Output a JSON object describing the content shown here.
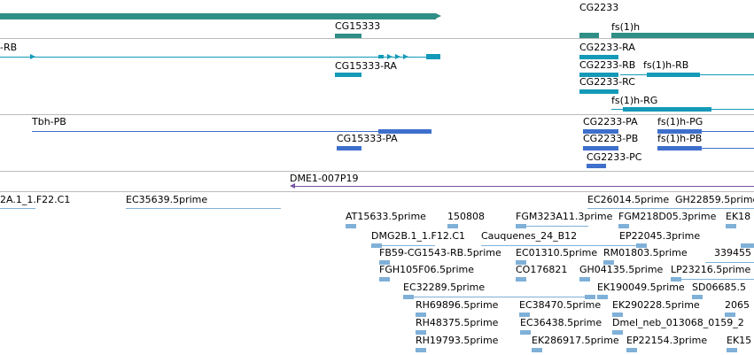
{
  "colors": {
    "gene": "#2f8f87",
    "mrna": "#149ab8",
    "cds": "#3f6fcc",
    "clone": "#7a56a6",
    "est": "#7fb0d8",
    "separator": "#bcbcbc"
  },
  "gene_track": {
    "labels": [
      "CG2233",
      "CG15333",
      "fs(1)h"
    ]
  },
  "mrna_track": {
    "labels": [
      "-RB",
      "CG2233-RA",
      "CG15333-RA",
      "CG2233-RB",
      "fs(1)h-RB",
      "CG2233-RC",
      "fs(1)h-RG"
    ]
  },
  "cds_track": {
    "labels": [
      "Tbh-PB",
      "CG2233-PA",
      "fs(1)h-PG",
      "CG15333-PA",
      "CG2233-PB",
      "fs(1)h-PB",
      "CG2233-PC"
    ]
  },
  "clone_track": {
    "labels": [
      "DME1-007P19"
    ]
  },
  "est_track": {
    "labels": [
      "2A.1_1.F22.C1",
      "EC35639.5prime",
      "EC26014.5prime",
      "GH22859.5prime",
      "AT15633.5prime",
      "150808",
      "FGM323A11.3prime",
      "FGM218D05.3prime",
      "EK18",
      "DMG2B.1_1.F12.C1",
      "Cauquenes_24_B12",
      "EP22045.3prime",
      "FB59-CG1543-RB.5prime",
      "EC01310.5prime",
      "RM01803.5prime",
      "339455",
      "FGH105F06.5prime",
      "CO176821",
      "GH04135.5prime",
      "LP23216.5prime",
      "EC32289.5prime",
      "EK190049.5prime",
      "SD06685.5",
      "RH69896.5prime",
      "EC38470.5prime",
      "EK290228.5prime",
      "2065",
      "RH48375.5prime",
      "EC36438.5prime",
      "Dmel_neb_013068_0159_2",
      "RH19793.5prime",
      "EK286917.5prime",
      "EP22154.3prime",
      "EK15"
    ]
  }
}
